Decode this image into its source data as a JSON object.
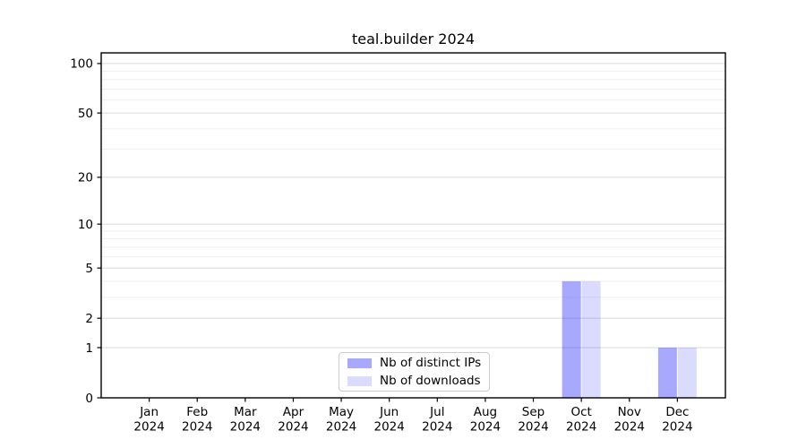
{
  "figure": {
    "background": "#ffffff"
  },
  "chart_data": {
    "type": "bar",
    "title": "teal.builder 2024",
    "categories": [
      "Jan 2024",
      "Feb 2024",
      "Mar 2024",
      "Apr 2024",
      "May 2024",
      "Jun 2024",
      "Jul 2024",
      "Aug 2024",
      "Sep 2024",
      "Oct 2024",
      "Nov 2024",
      "Dec 2024"
    ],
    "series": [
      {
        "name": "Nb of distinct IPs",
        "color": "rgba(0,0,255,0.34)",
        "values": [
          0,
          0,
          0,
          0,
          0,
          0,
          0,
          0,
          0,
          4,
          0,
          1
        ]
      },
      {
        "name": "Nb of downloads",
        "color": "rgba(0,0,255,0.14)",
        "values": [
          0,
          0,
          0,
          0,
          0,
          0,
          0,
          0,
          0,
          4,
          0,
          1
        ]
      }
    ],
    "yscale": "log1p",
    "ylim": [
      0,
      116
    ],
    "y_ticks": [
      0,
      1,
      2,
      5,
      10,
      20,
      50,
      100
    ],
    "y_minor_ticks": [
      3,
      4,
      6,
      7,
      8,
      9,
      30,
      40,
      60,
      70,
      80,
      90
    ],
    "grid": true,
    "legend_position": "lower center",
    "axis_color": "#000000",
    "grid_major_color": "#d9d9d9",
    "grid_minor_color": "#efefef",
    "xlabel": "",
    "ylabel": ""
  }
}
